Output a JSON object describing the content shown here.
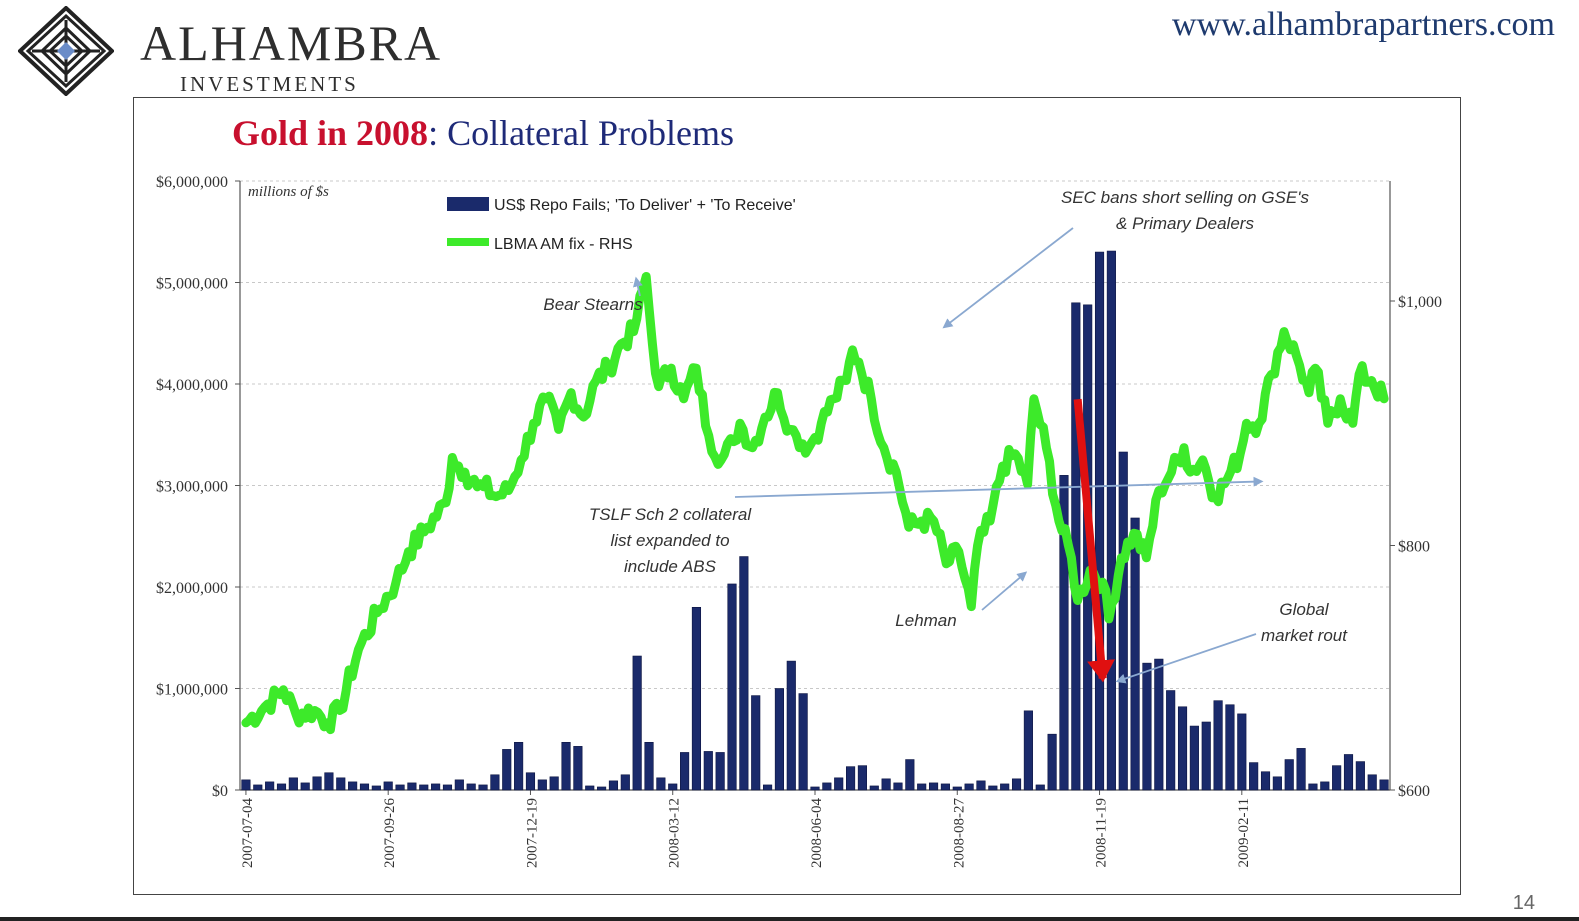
{
  "header": {
    "logo_name": "ALHAMBRA",
    "logo_sub": "INVESTMENTS",
    "url": "www.alhambrapartners.com"
  },
  "page_number": "14",
  "colors": {
    "bars": "#1a2a6b",
    "gold_line": "#3dea2a",
    "title_red": "#c8102e",
    "title_blue": "#1e2a78",
    "annotation_arrow": "#e01010"
  },
  "chart_data": {
    "type": "bar",
    "title_part1": "Gold in 2008",
    "title_part2": ": Collateral Problems",
    "unit_note": "millions of $s",
    "left_axis": {
      "min": 0,
      "max": 6000000,
      "step": 1000000,
      "tick_labels": [
        "$0",
        "$1,000,000",
        "$2,000,000",
        "$3,000,000",
        "$4,000,000",
        "$5,000,000",
        "$6,000,000"
      ]
    },
    "right_axis": {
      "ticks": [
        600,
        800,
        1000
      ],
      "tick_labels": [
        "$600",
        "$800",
        "$1,000"
      ]
    },
    "x_tick_labels": [
      "2007-07-04",
      "2007-09-26",
      "2007-12-19",
      "2008-03-12",
      "2008-06-04",
      "2008-08-27",
      "2008-11-19",
      "2009-02-11"
    ],
    "grid": true,
    "legend_position": "top-left",
    "series": [
      {
        "name": "US$ Repo Fails; 'To Deliver' + 'To Receive'",
        "type": "bar",
        "axis": "left",
        "values": [
          100000,
          50000,
          80000,
          60000,
          120000,
          70000,
          130000,
          170000,
          120000,
          80000,
          60000,
          40000,
          80000,
          50000,
          70000,
          50000,
          60000,
          50000,
          100000,
          60000,
          50000,
          150000,
          400000,
          470000,
          170000,
          100000,
          130000,
          470000,
          430000,
          40000,
          30000,
          90000,
          150000,
          1320000,
          470000,
          120000,
          60000,
          370000,
          1800000,
          380000,
          370000,
          2030000,
          2300000,
          930000,
          50000,
          1000000,
          1270000,
          950000,
          30000,
          70000,
          120000,
          230000,
          240000,
          40000,
          110000,
          70000,
          300000,
          60000,
          70000,
          60000,
          30000,
          60000,
          90000,
          40000,
          60000,
          110000,
          780000,
          50000,
          550000,
          3100000,
          4800000,
          4780000,
          5300000,
          5310000,
          3330000,
          2680000,
          1250000,
          1290000,
          980000,
          820000,
          630000,
          670000,
          880000,
          840000,
          750000,
          270000,
          180000,
          130000,
          300000,
          410000,
          60000,
          80000,
          240000,
          350000,
          280000,
          150000,
          100000
        ]
      },
      {
        "name": "LBMA AM fix - RHS",
        "type": "line",
        "axis": "right",
        "anchors": [
          [
            0,
            655
          ],
          [
            3,
            668
          ],
          [
            6,
            682
          ],
          [
            8,
            662
          ],
          [
            11,
            665
          ],
          [
            13,
            655
          ],
          [
            15,
            665
          ],
          [
            18,
            715
          ],
          [
            21,
            745
          ],
          [
            24,
            770
          ],
          [
            26,
            795
          ],
          [
            29,
            815
          ],
          [
            32,
            835
          ],
          [
            33,
            872
          ],
          [
            35,
            860
          ],
          [
            37,
            848
          ],
          [
            38,
            848
          ],
          [
            40,
            840
          ],
          [
            42,
            845
          ],
          [
            44,
            870
          ],
          [
            46,
            900
          ],
          [
            48,
            920
          ],
          [
            50,
            895
          ],
          [
            52,
            925
          ],
          [
            54,
            905
          ],
          [
            56,
            935
          ],
          [
            58,
            945
          ],
          [
            60,
            965
          ],
          [
            62,
            975
          ],
          [
            64,
            1020
          ],
          [
            65,
            965
          ],
          [
            66,
            930
          ],
          [
            68,
            945
          ],
          [
            70,
            920
          ],
          [
            72,
            945
          ],
          [
            74,
            890
          ],
          [
            76,
            870
          ],
          [
            78,
            885
          ],
          [
            79,
            900
          ],
          [
            81,
            880
          ],
          [
            83,
            905
          ],
          [
            85,
            925
          ],
          [
            87,
            895
          ],
          [
            88,
            890
          ],
          [
            90,
            880
          ],
          [
            92,
            900
          ],
          [
            94,
            920
          ],
          [
            96,
            935
          ],
          [
            97,
            960
          ],
          [
            98,
            950
          ],
          [
            100,
            920
          ],
          [
            102,
            880
          ],
          [
            104,
            860
          ],
          [
            106,
            815
          ],
          [
            108,
            820
          ],
          [
            110,
            820
          ],
          [
            112,
            785
          ],
          [
            114,
            795
          ],
          [
            116,
            750
          ],
          [
            117,
            800
          ],
          [
            119,
            820
          ],
          [
            121,
            865
          ],
          [
            123,
            875
          ],
          [
            125,
            850
          ],
          [
            126,
            920
          ],
          [
            128,
            880
          ],
          [
            130,
            820
          ],
          [
            132,
            790
          ],
          [
            133,
            755
          ],
          [
            135,
            780
          ],
          [
            137,
            770
          ],
          [
            138,
            740
          ],
          [
            140,
            790
          ],
          [
            142,
            810
          ],
          [
            144,
            790
          ],
          [
            146,
            845
          ],
          [
            148,
            860
          ],
          [
            150,
            880
          ],
          [
            151,
            860
          ],
          [
            153,
            870
          ],
          [
            155,
            840
          ],
          [
            157,
            855
          ],
          [
            159,
            875
          ],
          [
            160,
            900
          ],
          [
            162,
            900
          ],
          [
            164,
            940
          ],
          [
            166,
            975
          ],
          [
            168,
            955
          ],
          [
            170,
            925
          ],
          [
            171,
            945
          ],
          [
            173,
            900
          ],
          [
            175,
            920
          ],
          [
            177,
            900
          ],
          [
            178,
            940
          ],
          [
            180,
            935
          ],
          [
            182,
            920
          ]
        ],
        "anchor_count": 183
      }
    ],
    "annotations": [
      {
        "id": "bear-stearns",
        "text": [
          "Bear Stearns"
        ],
        "target": [
          64,
          1020
        ]
      },
      {
        "id": "tslf",
        "text": [
          "TSLF Sch 2 collateral",
          "list expanded to",
          "include ABS"
        ],
        "target": [
          86,
          3040000
        ]
      },
      {
        "id": "sec-bans",
        "text": [
          "SEC bans short selling on GSE's",
          "& Primary Dealers"
        ],
        "target": [
          111,
          4560000
        ]
      },
      {
        "id": "lehman",
        "text": [
          "Lehman"
        ],
        "target": [
          125,
          2200000
        ]
      },
      {
        "id": "global-rout",
        "text": [
          "Global",
          "market rout"
        ],
        "target": [
          140,
          1150000
        ]
      }
    ],
    "red_arrow": {
      "from": [
        133,
        3850000
      ],
      "to": [
        137,
        1100000
      ]
    }
  }
}
